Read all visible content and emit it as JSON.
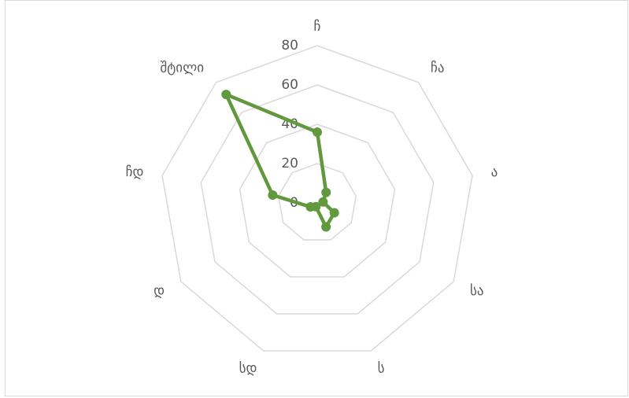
{
  "chart_data": {
    "type": "radar",
    "categories": [
      "ჩ",
      "ჩა",
      "ა",
      "სა",
      "ს",
      "სდ",
      "დ",
      "ჩდ",
      "შტილი"
    ],
    "series": [
      {
        "name": null,
        "color": "#62993e",
        "values": [
          36,
          7,
          3,
          10,
          13,
          2,
          4,
          23,
          72
        ]
      }
    ],
    "ylim": [
      0,
      80
    ],
    "yticks": [
      0,
      20,
      40,
      60,
      80
    ],
    "grid": true
  }
}
